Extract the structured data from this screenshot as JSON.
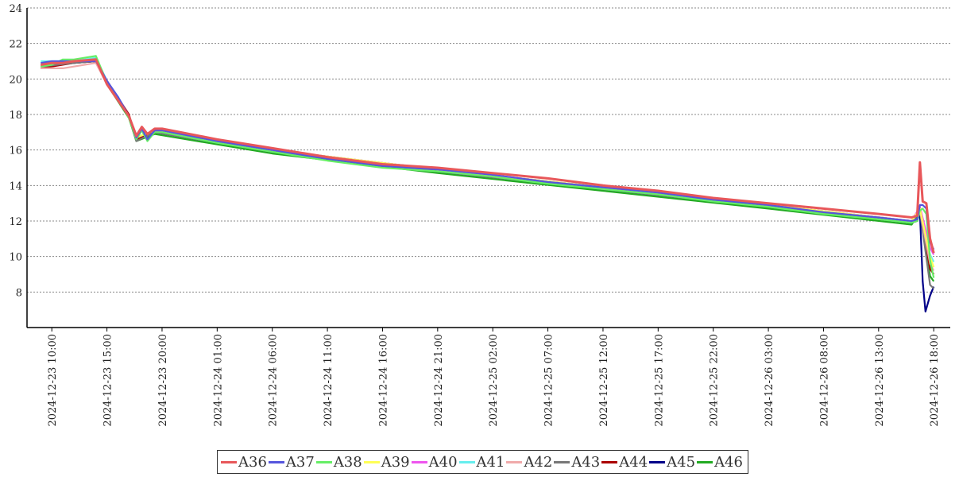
{
  "chart_data": {
    "type": "line",
    "title": "",
    "xlabel": "",
    "ylabel": "",
    "ylim": [
      6,
      24
    ],
    "yticks": [
      8,
      10,
      12,
      14,
      16,
      18,
      20,
      22,
      24
    ],
    "grid": "horizontal-dotted",
    "legend_position": "bottom",
    "x_tick_labels": [
      "2024-12-23 10:00",
      "2024-12-23 15:00",
      "2024-12-23 20:00",
      "2024-12-24 01:00",
      "2024-12-24 06:00",
      "2024-12-24 11:00",
      "2024-12-24 16:00",
      "2024-12-24 21:00",
      "2024-12-25 02:00",
      "2024-12-25 07:00",
      "2024-12-25 12:00",
      "2024-12-25 17:00",
      "2024-12-25 22:00",
      "2024-12-26 03:00",
      "2024-12-26 08:00",
      "2024-12-26 13:00",
      "2024-12-26 18:00"
    ],
    "x_range": [
      "2024-12-23 07:45",
      "2024-12-26 19:30"
    ],
    "series": [
      {
        "name": "A36",
        "color": "#e8575a",
        "x": [
          "2024-12-23 09:00",
          "2024-12-23 10:00",
          "2024-12-23 11:00",
          "2024-12-23 12:00",
          "2024-12-23 14:00",
          "2024-12-23 15:00",
          "2024-12-23 16:00",
          "2024-12-23 17:00",
          "2024-12-23 17:40",
          "2024-12-23 18:10",
          "2024-12-23 18:40",
          "2024-12-23 19:20",
          "2024-12-23 20:00",
          "2024-12-24 01:00",
          "2024-12-24 06:00",
          "2024-12-24 11:00",
          "2024-12-24 16:00",
          "2024-12-24 21:00",
          "2024-12-25 02:00",
          "2024-12-25 07:00",
          "2024-12-25 12:00",
          "2024-12-25 17:00",
          "2024-12-25 22:00",
          "2024-12-26 03:00",
          "2024-12-26 08:00",
          "2024-12-26 13:00",
          "2024-12-26 16:00",
          "2024-12-26 16:30",
          "2024-12-26 16:45",
          "2024-12-26 17:00",
          "2024-12-26 17:20",
          "2024-12-26 17:40",
          "2024-12-26 18:00"
        ],
        "y": [
          20.8,
          20.9,
          20.9,
          21.0,
          21.1,
          19.7,
          18.8,
          17.9,
          16.8,
          17.3,
          16.9,
          17.2,
          17.2,
          16.6,
          16.1,
          15.6,
          15.2,
          15.0,
          14.7,
          14.4,
          14.0,
          13.7,
          13.3,
          13.0,
          12.7,
          12.4,
          12.2,
          12.3,
          15.3,
          13.1,
          13.0,
          11.0,
          10.2
        ]
      },
      {
        "name": "A37",
        "color": "#5555dd",
        "x": [
          "2024-12-23 09:00",
          "2024-12-23 10:00",
          "2024-12-23 11:00",
          "2024-12-23 12:00",
          "2024-12-23 14:00",
          "2024-12-23 15:00",
          "2024-12-23 16:00",
          "2024-12-23 17:00",
          "2024-12-23 17:40",
          "2024-12-23 18:10",
          "2024-12-23 18:40",
          "2024-12-23 19:20",
          "2024-12-23 20:00",
          "2024-12-24 01:00",
          "2024-12-24 06:00",
          "2024-12-24 11:00",
          "2024-12-24 16:00",
          "2024-12-24 21:00",
          "2024-12-25 02:00",
          "2024-12-25 07:00",
          "2024-12-25 12:00",
          "2024-12-25 17:00",
          "2024-12-25 22:00",
          "2024-12-26 03:00",
          "2024-12-26 08:00",
          "2024-12-26 13:00",
          "2024-12-26 16:00",
          "2024-12-26 16:30",
          "2024-12-26 16:45",
          "2024-12-26 17:00",
          "2024-12-26 17:20",
          "2024-12-26 17:40",
          "2024-12-26 18:00"
        ],
        "y": [
          20.9,
          21.0,
          21.0,
          21.0,
          21.0,
          19.9,
          19.0,
          17.9,
          16.7,
          17.2,
          16.6,
          17.1,
          17.1,
          16.5,
          16.0,
          15.5,
          15.1,
          14.9,
          14.6,
          14.2,
          13.9,
          13.6,
          13.2,
          12.9,
          12.5,
          12.2,
          12.0,
          12.1,
          12.9,
          12.9,
          12.7,
          10.8,
          10.4
        ]
      },
      {
        "name": "A38",
        "color": "#66ee66",
        "x": [
          "2024-12-23 09:00",
          "2024-12-23 10:00",
          "2024-12-23 11:00",
          "2024-12-23 12:00",
          "2024-12-23 14:00",
          "2024-12-23 15:00",
          "2024-12-23 16:00",
          "2024-12-23 17:00",
          "2024-12-23 17:40",
          "2024-12-23 18:10",
          "2024-12-23 18:40",
          "2024-12-23 19:20",
          "2024-12-23 20:00",
          "2024-12-24 01:00",
          "2024-12-24 06:00",
          "2024-12-24 11:00",
          "2024-12-24 16:00",
          "2024-12-24 21:00",
          "2024-12-25 02:00",
          "2024-12-25 07:00",
          "2024-12-25 12:00",
          "2024-12-25 17:00",
          "2024-12-25 22:00",
          "2024-12-26 03:00",
          "2024-12-26 08:00",
          "2024-12-26 13:00",
          "2024-12-26 16:00",
          "2024-12-26 16:30",
          "2024-12-26 16:45",
          "2024-12-26 17:00",
          "2024-12-26 17:20",
          "2024-12-26 17:40",
          "2024-12-26 18:00"
        ],
        "y": [
          20.7,
          20.8,
          21.1,
          21.1,
          21.3,
          19.8,
          18.9,
          17.8,
          16.6,
          17.1,
          16.5,
          17.0,
          17.0,
          16.4,
          15.9,
          15.4,
          15.0,
          14.8,
          14.5,
          14.1,
          13.8,
          13.5,
          13.1,
          12.8,
          12.4,
          12.1,
          11.9,
          12.0,
          12.6,
          12.7,
          12.4,
          9.8,
          8.8
        ]
      },
      {
        "name": "A39",
        "color": "#ffff55",
        "x": [
          "2024-12-23 09:00",
          "2024-12-23 12:00",
          "2024-12-23 14:00",
          "2024-12-23 15:00",
          "2024-12-23 17:00",
          "2024-12-23 17:40",
          "2024-12-23 19:20",
          "2024-12-24 06:00",
          "2024-12-24 21:00",
          "2024-12-25 12:00",
          "2024-12-26 03:00",
          "2024-12-26 16:00",
          "2024-12-26 16:45",
          "2024-12-26 17:40",
          "2024-12-26 18:00"
        ],
        "y": [
          20.8,
          21.0,
          21.1,
          19.8,
          17.9,
          16.7,
          17.1,
          16.0,
          14.9,
          13.9,
          12.9,
          12.0,
          12.7,
          10.0,
          9.4
        ]
      },
      {
        "name": "A40",
        "color": "#ee55ee",
        "x": [
          "2024-12-23 09:00",
          "2024-12-23 12:00",
          "2024-12-23 14:00",
          "2024-12-23 15:00",
          "2024-12-23 17:00",
          "2024-12-23 17:40",
          "2024-12-23 19:20",
          "2024-12-24 06:00",
          "2024-12-24 21:00",
          "2024-12-25 12:00",
          "2024-12-26 03:00",
          "2024-12-26 16:00",
          "2024-12-26 16:45",
          "2024-12-26 17:40",
          "2024-12-26 18:00"
        ],
        "y": [
          20.8,
          21.0,
          21.1,
          19.8,
          17.9,
          16.7,
          17.1,
          16.0,
          14.9,
          13.9,
          12.9,
          12.0,
          12.8,
          10.5,
          10.1
        ]
      },
      {
        "name": "A41",
        "color": "#66eeee",
        "x": [
          "2024-12-23 09:00",
          "2024-12-23 12:00",
          "2024-12-23 14:00",
          "2024-12-23 15:00",
          "2024-12-23 17:00",
          "2024-12-23 17:40",
          "2024-12-23 19:20",
          "2024-12-24 06:00",
          "2024-12-24 21:00",
          "2024-12-25 12:00",
          "2024-12-26 03:00",
          "2024-12-26 16:00",
          "2024-12-26 16:45",
          "2024-12-26 17:40",
          "2024-12-26 18:00"
        ],
        "y": [
          21.0,
          21.0,
          21.2,
          19.9,
          17.9,
          16.7,
          17.1,
          16.0,
          14.9,
          13.9,
          12.9,
          12.0,
          12.7,
          10.1,
          9.7
        ]
      },
      {
        "name": "A42",
        "color": "#f0aaaa",
        "x": [
          "2024-12-23 09:00",
          "2024-12-23 11:00",
          "2024-12-23 12:00",
          "2024-12-23 14:00",
          "2024-12-23 15:00",
          "2024-12-23 17:00",
          "2024-12-23 17:40",
          "2024-12-23 19:20",
          "2024-12-24 06:00",
          "2024-12-24 21:00",
          "2024-12-25 12:00",
          "2024-12-26 03:00",
          "2024-12-26 16:00",
          "2024-12-26 16:45",
          "2024-12-26 17:40",
          "2024-12-26 18:00"
        ],
        "y": [
          20.6,
          20.6,
          20.7,
          20.9,
          19.7,
          17.9,
          16.7,
          17.1,
          16.0,
          14.9,
          13.9,
          12.9,
          12.0,
          12.6,
          9.6,
          9.2
        ]
      },
      {
        "name": "A43",
        "color": "#777777",
        "x": [
          "2024-12-23 09:00",
          "2024-12-23 12:00",
          "2024-12-23 14:00",
          "2024-12-23 15:00",
          "2024-12-23 17:00",
          "2024-12-23 17:40",
          "2024-12-23 19:20",
          "2024-12-24 06:00",
          "2024-12-24 21:00",
          "2024-12-25 12:00",
          "2024-12-26 03:00",
          "2024-12-26 16:00",
          "2024-12-26 16:45",
          "2024-12-26 17:40",
          "2024-12-26 18:00"
        ],
        "y": [
          20.7,
          20.9,
          21.0,
          19.8,
          17.9,
          16.5,
          17.0,
          15.9,
          14.8,
          13.8,
          12.8,
          11.9,
          12.6,
          8.4,
          8.2
        ]
      },
      {
        "name": "A44",
        "color": "#aa0000",
        "x": [
          "2024-12-23 09:00",
          "2024-12-23 12:00",
          "2024-12-23 14:00",
          "2024-12-23 15:00",
          "2024-12-23 17:00",
          "2024-12-23 17:40",
          "2024-12-23 19:20",
          "2024-12-24 06:00",
          "2024-12-24 21:00",
          "2024-12-25 12:00",
          "2024-12-26 03:00",
          "2024-12-26 16:00",
          "2024-12-26 16:45",
          "2024-12-26 17:40",
          "2024-12-26 18:00"
        ],
        "y": [
          20.6,
          20.9,
          21.0,
          19.9,
          18.0,
          16.6,
          17.1,
          16.0,
          14.9,
          13.9,
          12.9,
          12.0,
          12.7,
          9.3,
          9.0
        ]
      },
      {
        "name": "A45",
        "color": "#000088",
        "x": [
          "2024-12-23 09:00",
          "2024-12-23 12:00",
          "2024-12-23 14:00",
          "2024-12-23 15:00",
          "2024-12-23 17:00",
          "2024-12-23 17:40",
          "2024-12-23 19:20",
          "2024-12-24 06:00",
          "2024-12-24 21:00",
          "2024-12-25 12:00",
          "2024-12-26 03:00",
          "2024-12-26 16:00",
          "2024-12-26 16:30",
          "2024-12-26 16:45",
          "2024-12-26 17:00",
          "2024-12-26 17:15",
          "2024-12-26 17:40",
          "2024-12-26 18:00"
        ],
        "y": [
          20.8,
          20.9,
          21.0,
          19.8,
          17.9,
          16.6,
          17.0,
          15.9,
          14.8,
          13.8,
          12.8,
          11.9,
          12.0,
          12.5,
          8.6,
          6.9,
          7.8,
          8.3
        ]
      },
      {
        "name": "A46",
        "color": "#22aa22",
        "x": [
          "2024-12-23 09:00",
          "2024-12-23 12:00",
          "2024-12-23 14:00",
          "2024-12-23 15:00",
          "2024-12-23 17:00",
          "2024-12-23 17:40",
          "2024-12-23 19:20",
          "2024-12-24 06:00",
          "2024-12-24 21:00",
          "2024-12-25 12:00",
          "2024-12-26 03:00",
          "2024-12-26 16:00",
          "2024-12-26 16:45",
          "2024-12-26 17:40",
          "2024-12-26 18:00"
        ],
        "y": [
          20.7,
          20.9,
          21.0,
          19.7,
          17.8,
          16.5,
          16.9,
          15.8,
          14.7,
          13.7,
          12.7,
          11.8,
          12.5,
          8.9,
          8.6
        ]
      }
    ]
  }
}
